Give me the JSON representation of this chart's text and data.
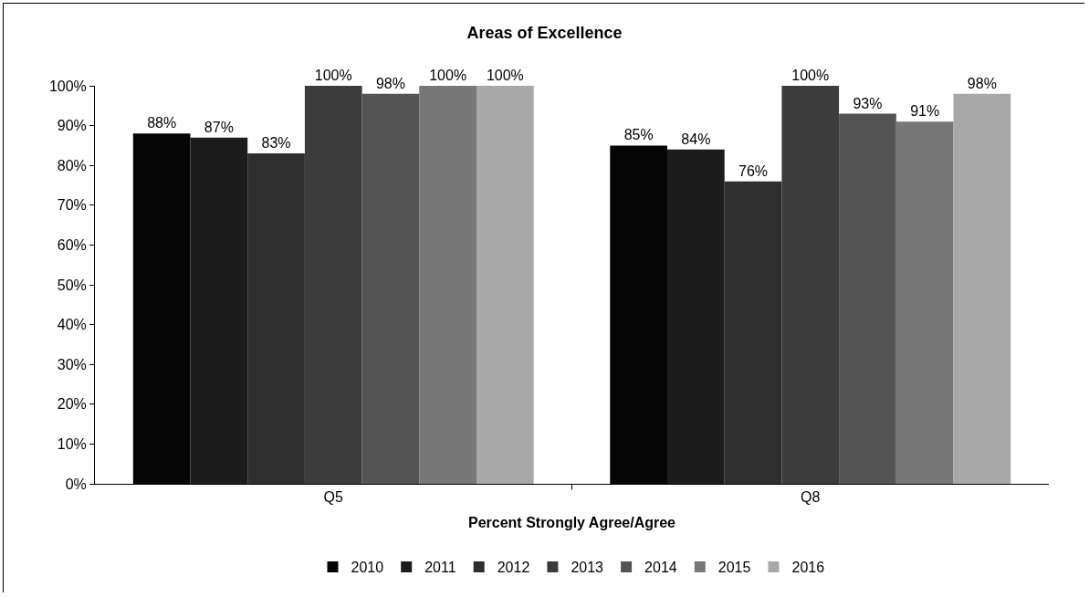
{
  "chart_data": {
    "type": "bar",
    "title": "Areas of Excellence",
    "xlabel": "Percent Strongly Agree/Agree",
    "categories": [
      "Q5",
      "Q8"
    ],
    "series": [
      {
        "name": "2010",
        "color": "#050505",
        "values": [
          88,
          85
        ],
        "value_labels": [
          "88%",
          "85%"
        ]
      },
      {
        "name": "2011",
        "color": "#1c1c1c",
        "values": [
          87,
          84
        ],
        "value_labels": [
          "87%",
          "84%"
        ]
      },
      {
        "name": "2012",
        "color": "#2e2e2e",
        "values": [
          83,
          76
        ],
        "value_labels": [
          "83%",
          "76%"
        ]
      },
      {
        "name": "2013",
        "color": "#3c3c3c",
        "values": [
          100,
          100
        ],
        "value_labels": [
          "100%",
          "100%"
        ]
      },
      {
        "name": "2014",
        "color": "#545454",
        "values": [
          98,
          93
        ],
        "value_labels": [
          "98%",
          "93%"
        ]
      },
      {
        "name": "2015",
        "color": "#777777",
        "values": [
          100,
          91
        ],
        "value_labels": [
          "100%",
          "91%"
        ]
      },
      {
        "name": "2016",
        "color": "#a8a8a8",
        "values": [
          100,
          98
        ],
        "value_labels": [
          "100%",
          "98%"
        ]
      }
    ],
    "ylim": [
      0,
      100
    ],
    "yticks": [
      {
        "value": 0,
        "label": "0%"
      },
      {
        "value": 10,
        "label": "10%"
      },
      {
        "value": 20,
        "label": "20%"
      },
      {
        "value": 30,
        "label": "30%"
      },
      {
        "value": 40,
        "label": "40%"
      },
      {
        "value": 50,
        "label": "50%"
      },
      {
        "value": 60,
        "label": "60%"
      },
      {
        "value": 70,
        "label": "70%"
      },
      {
        "value": 80,
        "label": "80%"
      },
      {
        "value": 90,
        "label": "90%"
      },
      {
        "value": 100,
        "label": "100%"
      }
    ],
    "grid": false,
    "legend": "bottom"
  }
}
